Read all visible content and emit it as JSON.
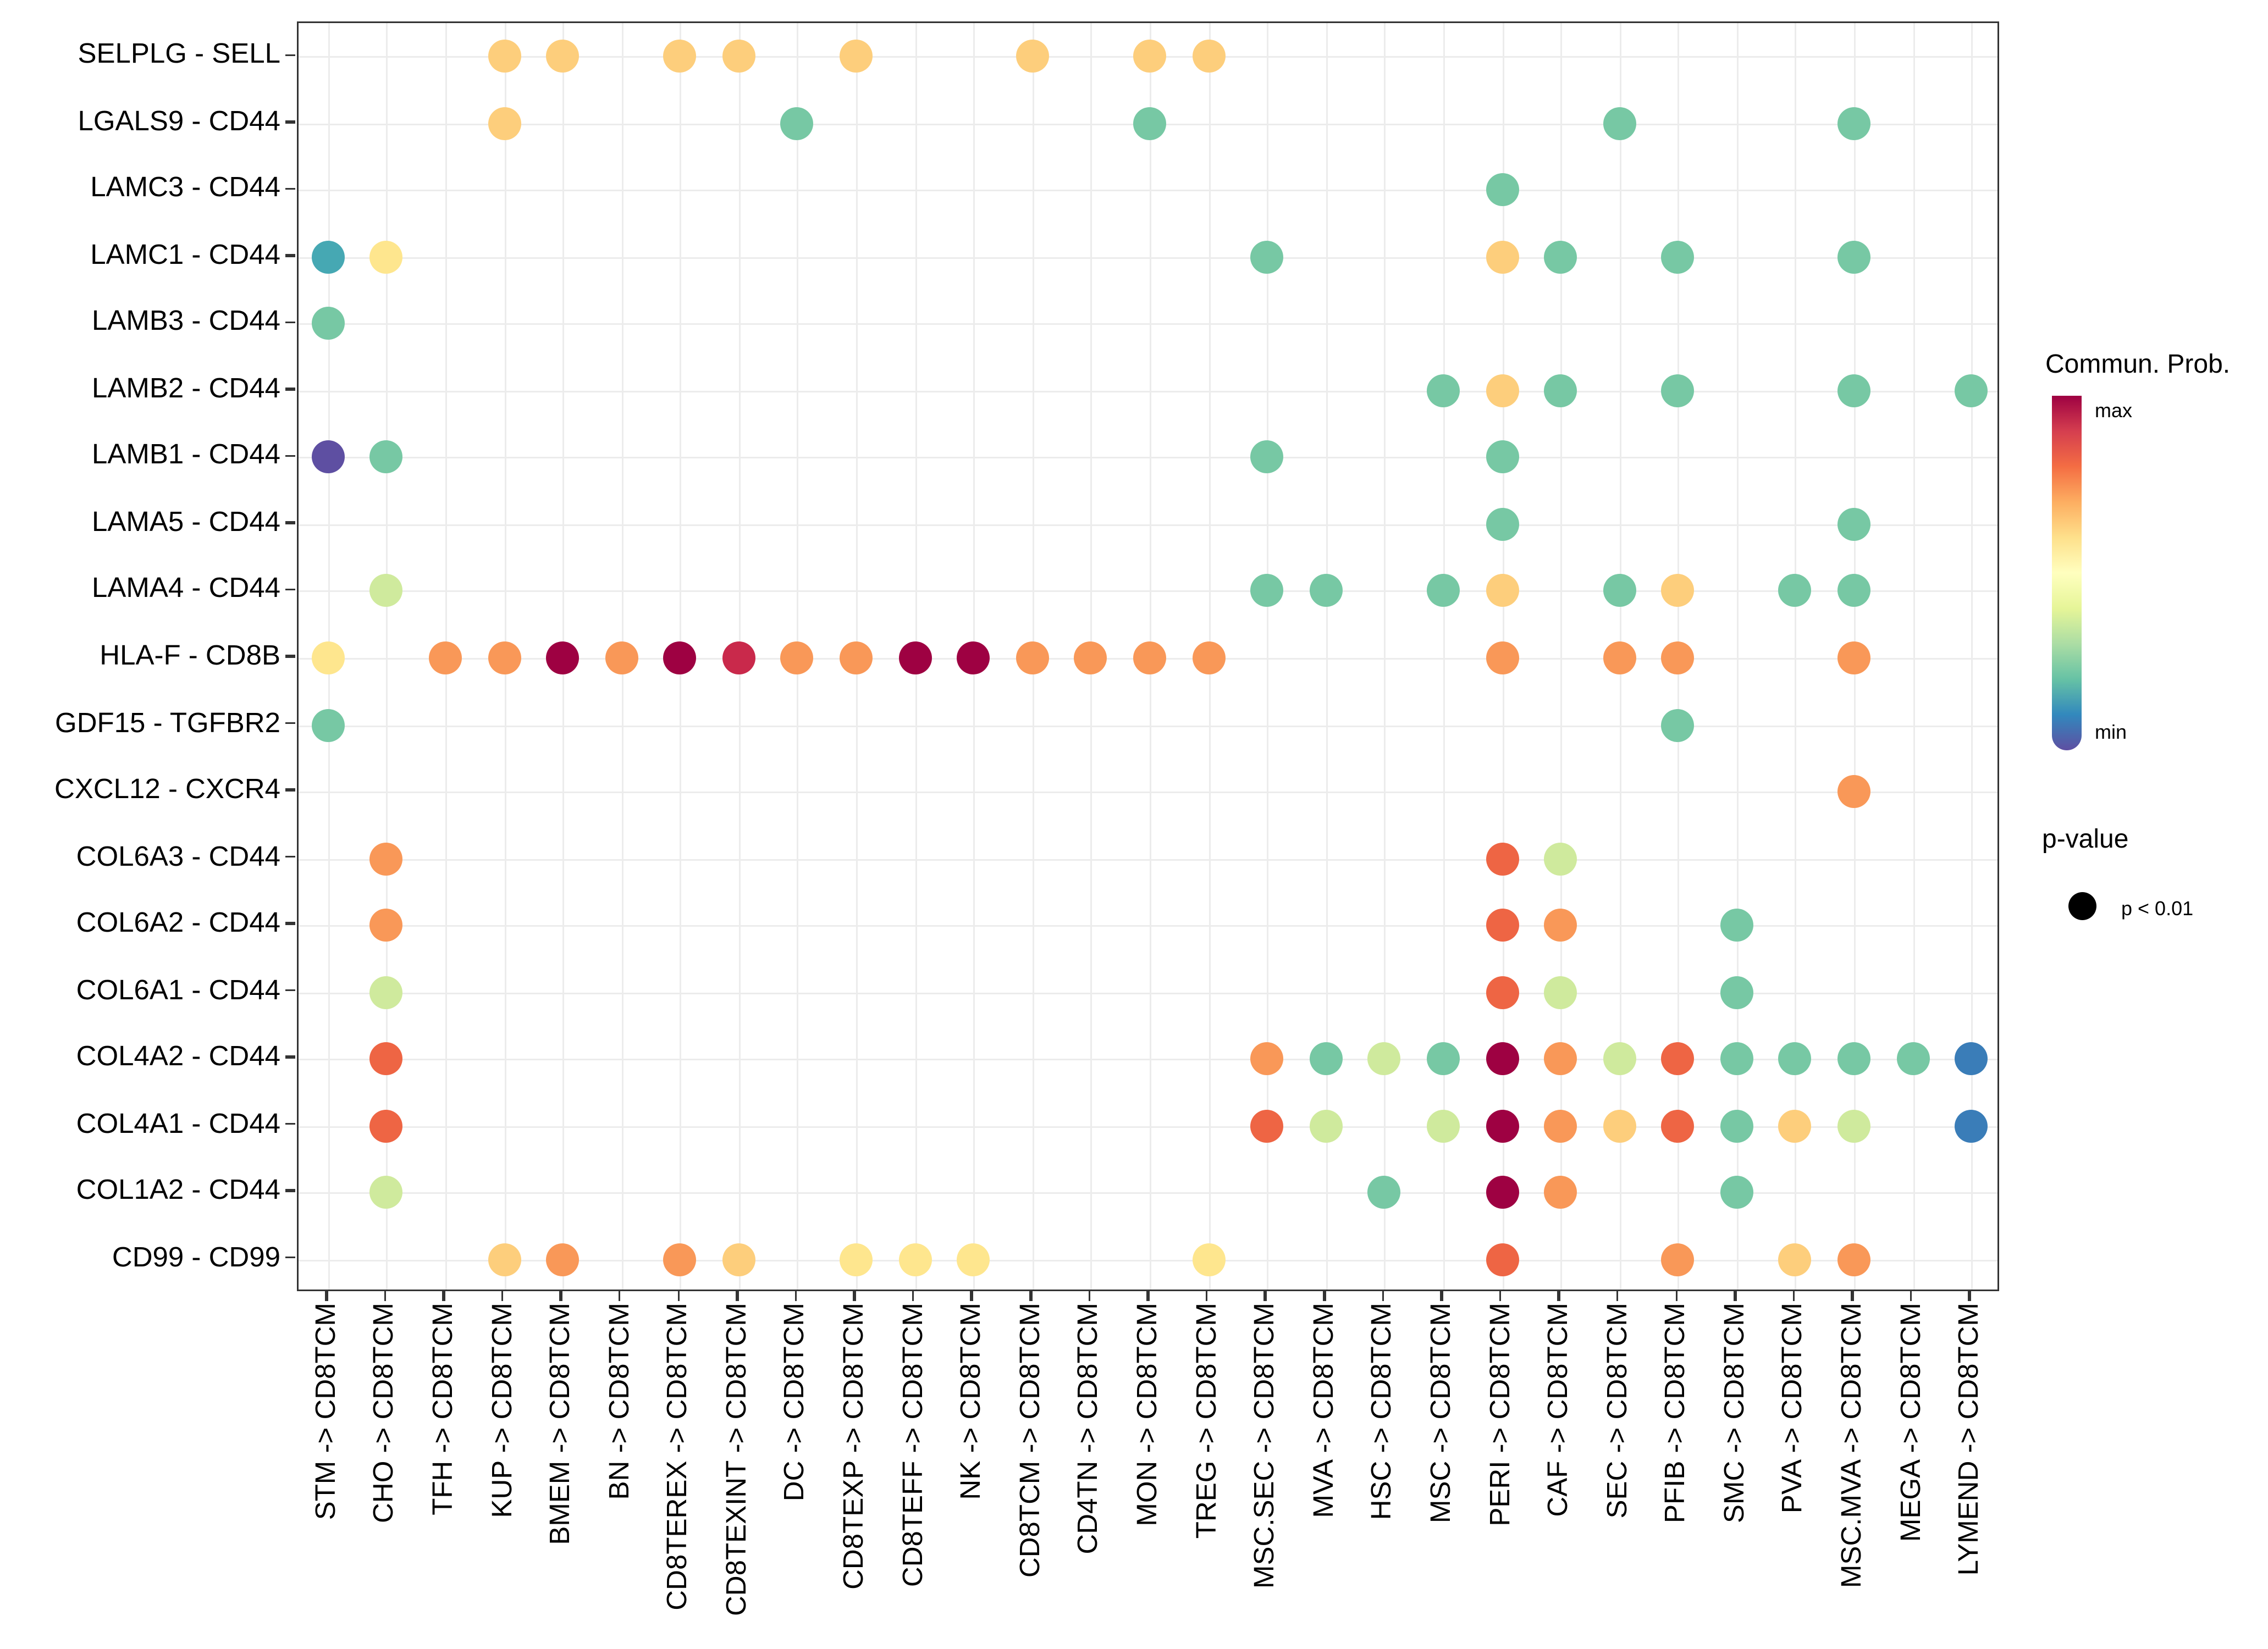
{
  "legend": {
    "colorbar_title": "Commun. Prob.",
    "colorbar_max": "max",
    "colorbar_min": "min",
    "pvalue_title": "p-value",
    "pvalue_label": "p < 0.01"
  },
  "chart_data": {
    "type": "scatter",
    "subtype": "bubble-dotplot",
    "title": "",
    "xlabel": "",
    "ylabel": "",
    "grid": true,
    "legend_position": "right",
    "rows": [
      "SELPLG - SELL",
      "LGALS9 - CD44",
      "LAMC3 - CD44",
      "LAMC1 - CD44",
      "LAMB3 - CD44",
      "LAMB2 - CD44",
      "LAMB1 - CD44",
      "LAMA5 - CD44",
      "LAMA4 - CD44",
      "HLA-F - CD8B",
      "GDF15 - TGFBR2",
      "CXCL12 - CXCR4",
      "COL6A3 - CD44",
      "COL6A2 - CD44",
      "COL6A1 - CD44",
      "COL4A2 - CD44",
      "COL4A1 - CD44",
      "COL1A2 - CD44",
      "CD99 - CD99"
    ],
    "columns": [
      "STM -> CD8TCM",
      "CHO -> CD8TCM",
      "TFH -> CD8TCM",
      "KUP -> CD8TCM",
      "BMEM -> CD8TCM",
      "BN -> CD8TCM",
      "CD8TEREX -> CD8TCM",
      "CD8TEXINT -> CD8TCM",
      "DC -> CD8TCM",
      "CD8TEXP -> CD8TCM",
      "CD8TEFF -> CD8TCM",
      "NK -> CD8TCM",
      "CD8TCM -> CD8TCM",
      "CD4TN -> CD8TCM",
      "MON -> CD8TCM",
      "TREG -> CD8TCM",
      "MSC.SEC -> CD8TCM",
      "MVA -> CD8TCM",
      "HSC -> CD8TCM",
      "MSC -> CD8TCM",
      "PERI -> CD8TCM",
      "CAF -> CD8TCM",
      "SEC -> CD8TCM",
      "PFIB -> CD8TCM",
      "SMC -> CD8TCM",
      "PVA -> CD8TCM",
      "MSC.MVA -> CD8TCM",
      "MEGA -> CD8TCM",
      "LYMEND -> CD8TCM"
    ],
    "palette": {
      "maxred": "#9E0142",
      "red": "#C9294B",
      "orangered": "#EE6544",
      "orange": "#F99858",
      "sand": "#FDCE7C",
      "yellow": "#FEE68E",
      "yellowgreen": "#CFEA9D",
      "green": "#77C8A4",
      "teal": "#46A8B3",
      "blue": "#3A7DB8",
      "purple": "#5E4FA2"
    },
    "gradient": [
      "#9E0142",
      "#D53E4F",
      "#F46D43",
      "#FDAE61",
      "#FEE08B",
      "#FFFFBF",
      "#E6F598",
      "#ABDDA4",
      "#66C2A5",
      "#3288BD",
      "#5E4FA2"
    ],
    "dot_size_meaning": "p < 0.01",
    "dots": [
      [
        0,
        3,
        "sand"
      ],
      [
        0,
        4,
        "sand"
      ],
      [
        0,
        6,
        "sand"
      ],
      [
        0,
        7,
        "sand"
      ],
      [
        0,
        9,
        "sand"
      ],
      [
        0,
        12,
        "sand"
      ],
      [
        0,
        14,
        "sand"
      ],
      [
        0,
        15,
        "sand"
      ],
      [
        1,
        3,
        "sand"
      ],
      [
        1,
        8,
        "green"
      ],
      [
        1,
        14,
        "green"
      ],
      [
        1,
        22,
        "green"
      ],
      [
        1,
        26,
        "green"
      ],
      [
        2,
        20,
        "green"
      ],
      [
        3,
        0,
        "teal"
      ],
      [
        3,
        1,
        "yellow"
      ],
      [
        3,
        16,
        "green"
      ],
      [
        3,
        20,
        "sand"
      ],
      [
        3,
        21,
        "green"
      ],
      [
        3,
        23,
        "green"
      ],
      [
        3,
        26,
        "green"
      ],
      [
        4,
        0,
        "green"
      ],
      [
        5,
        19,
        "green"
      ],
      [
        5,
        20,
        "sand"
      ],
      [
        5,
        21,
        "green"
      ],
      [
        5,
        23,
        "green"
      ],
      [
        5,
        26,
        "green"
      ],
      [
        5,
        28,
        "green"
      ],
      [
        6,
        0,
        "purple"
      ],
      [
        6,
        1,
        "green"
      ],
      [
        6,
        16,
        "green"
      ],
      [
        6,
        20,
        "green"
      ],
      [
        7,
        20,
        "green"
      ],
      [
        7,
        26,
        "green"
      ],
      [
        8,
        1,
        "yellowgreen"
      ],
      [
        8,
        16,
        "green"
      ],
      [
        8,
        17,
        "green"
      ],
      [
        8,
        19,
        "green"
      ],
      [
        8,
        20,
        "sand"
      ],
      [
        8,
        22,
        "green"
      ],
      [
        8,
        23,
        "sand"
      ],
      [
        8,
        25,
        "green"
      ],
      [
        8,
        26,
        "green"
      ],
      [
        9,
        0,
        "yellow"
      ],
      [
        9,
        2,
        "orange"
      ],
      [
        9,
        3,
        "orange"
      ],
      [
        9,
        4,
        "maxred"
      ],
      [
        9,
        5,
        "orange"
      ],
      [
        9,
        6,
        "maxred"
      ],
      [
        9,
        7,
        "red"
      ],
      [
        9,
        8,
        "orange"
      ],
      [
        9,
        9,
        "orange"
      ],
      [
        9,
        10,
        "maxred"
      ],
      [
        9,
        11,
        "maxred"
      ],
      [
        9,
        12,
        "orange"
      ],
      [
        9,
        13,
        "orange"
      ],
      [
        9,
        14,
        "orange"
      ],
      [
        9,
        15,
        "orange"
      ],
      [
        9,
        20,
        "orange"
      ],
      [
        9,
        22,
        "orange"
      ],
      [
        9,
        23,
        "orange"
      ],
      [
        9,
        26,
        "orange"
      ],
      [
        10,
        0,
        "green"
      ],
      [
        10,
        23,
        "green"
      ],
      [
        11,
        26,
        "orange"
      ],
      [
        12,
        1,
        "orange"
      ],
      [
        12,
        20,
        "orangered"
      ],
      [
        12,
        21,
        "yellowgreen"
      ],
      [
        13,
        1,
        "orange"
      ],
      [
        13,
        20,
        "orangered"
      ],
      [
        13,
        21,
        "orange"
      ],
      [
        13,
        24,
        "green"
      ],
      [
        14,
        1,
        "yellowgreen"
      ],
      [
        14,
        20,
        "orangered"
      ],
      [
        14,
        21,
        "yellowgreen"
      ],
      [
        14,
        24,
        "green"
      ],
      [
        15,
        1,
        "orangered"
      ],
      [
        15,
        16,
        "orange"
      ],
      [
        15,
        17,
        "green"
      ],
      [
        15,
        18,
        "yellowgreen"
      ],
      [
        15,
        19,
        "green"
      ],
      [
        15,
        20,
        "maxred"
      ],
      [
        15,
        21,
        "orange"
      ],
      [
        15,
        22,
        "yellowgreen"
      ],
      [
        15,
        23,
        "orangered"
      ],
      [
        15,
        24,
        "green"
      ],
      [
        15,
        25,
        "green"
      ],
      [
        15,
        26,
        "green"
      ],
      [
        15,
        27,
        "green"
      ],
      [
        15,
        28,
        "blue"
      ],
      [
        16,
        1,
        "orangered"
      ],
      [
        16,
        16,
        "orangered"
      ],
      [
        16,
        17,
        "yellowgreen"
      ],
      [
        16,
        19,
        "yellowgreen"
      ],
      [
        16,
        20,
        "maxred"
      ],
      [
        16,
        21,
        "orange"
      ],
      [
        16,
        22,
        "sand"
      ],
      [
        16,
        23,
        "orangered"
      ],
      [
        16,
        24,
        "green"
      ],
      [
        16,
        25,
        "sand"
      ],
      [
        16,
        26,
        "yellowgreen"
      ],
      [
        16,
        28,
        "blue"
      ],
      [
        17,
        1,
        "yellowgreen"
      ],
      [
        17,
        18,
        "green"
      ],
      [
        17,
        20,
        "maxred"
      ],
      [
        17,
        21,
        "orange"
      ],
      [
        17,
        24,
        "green"
      ],
      [
        18,
        3,
        "sand"
      ],
      [
        18,
        4,
        "orange"
      ],
      [
        18,
        6,
        "orange"
      ],
      [
        18,
        7,
        "sand"
      ],
      [
        18,
        9,
        "yellow"
      ],
      [
        18,
        10,
        "yellow"
      ],
      [
        18,
        11,
        "yellow"
      ],
      [
        18,
        15,
        "yellow"
      ],
      [
        18,
        20,
        "orangered"
      ],
      [
        18,
        23,
        "orange"
      ],
      [
        18,
        25,
        "sand"
      ],
      [
        18,
        26,
        "orange"
      ]
    ]
  }
}
